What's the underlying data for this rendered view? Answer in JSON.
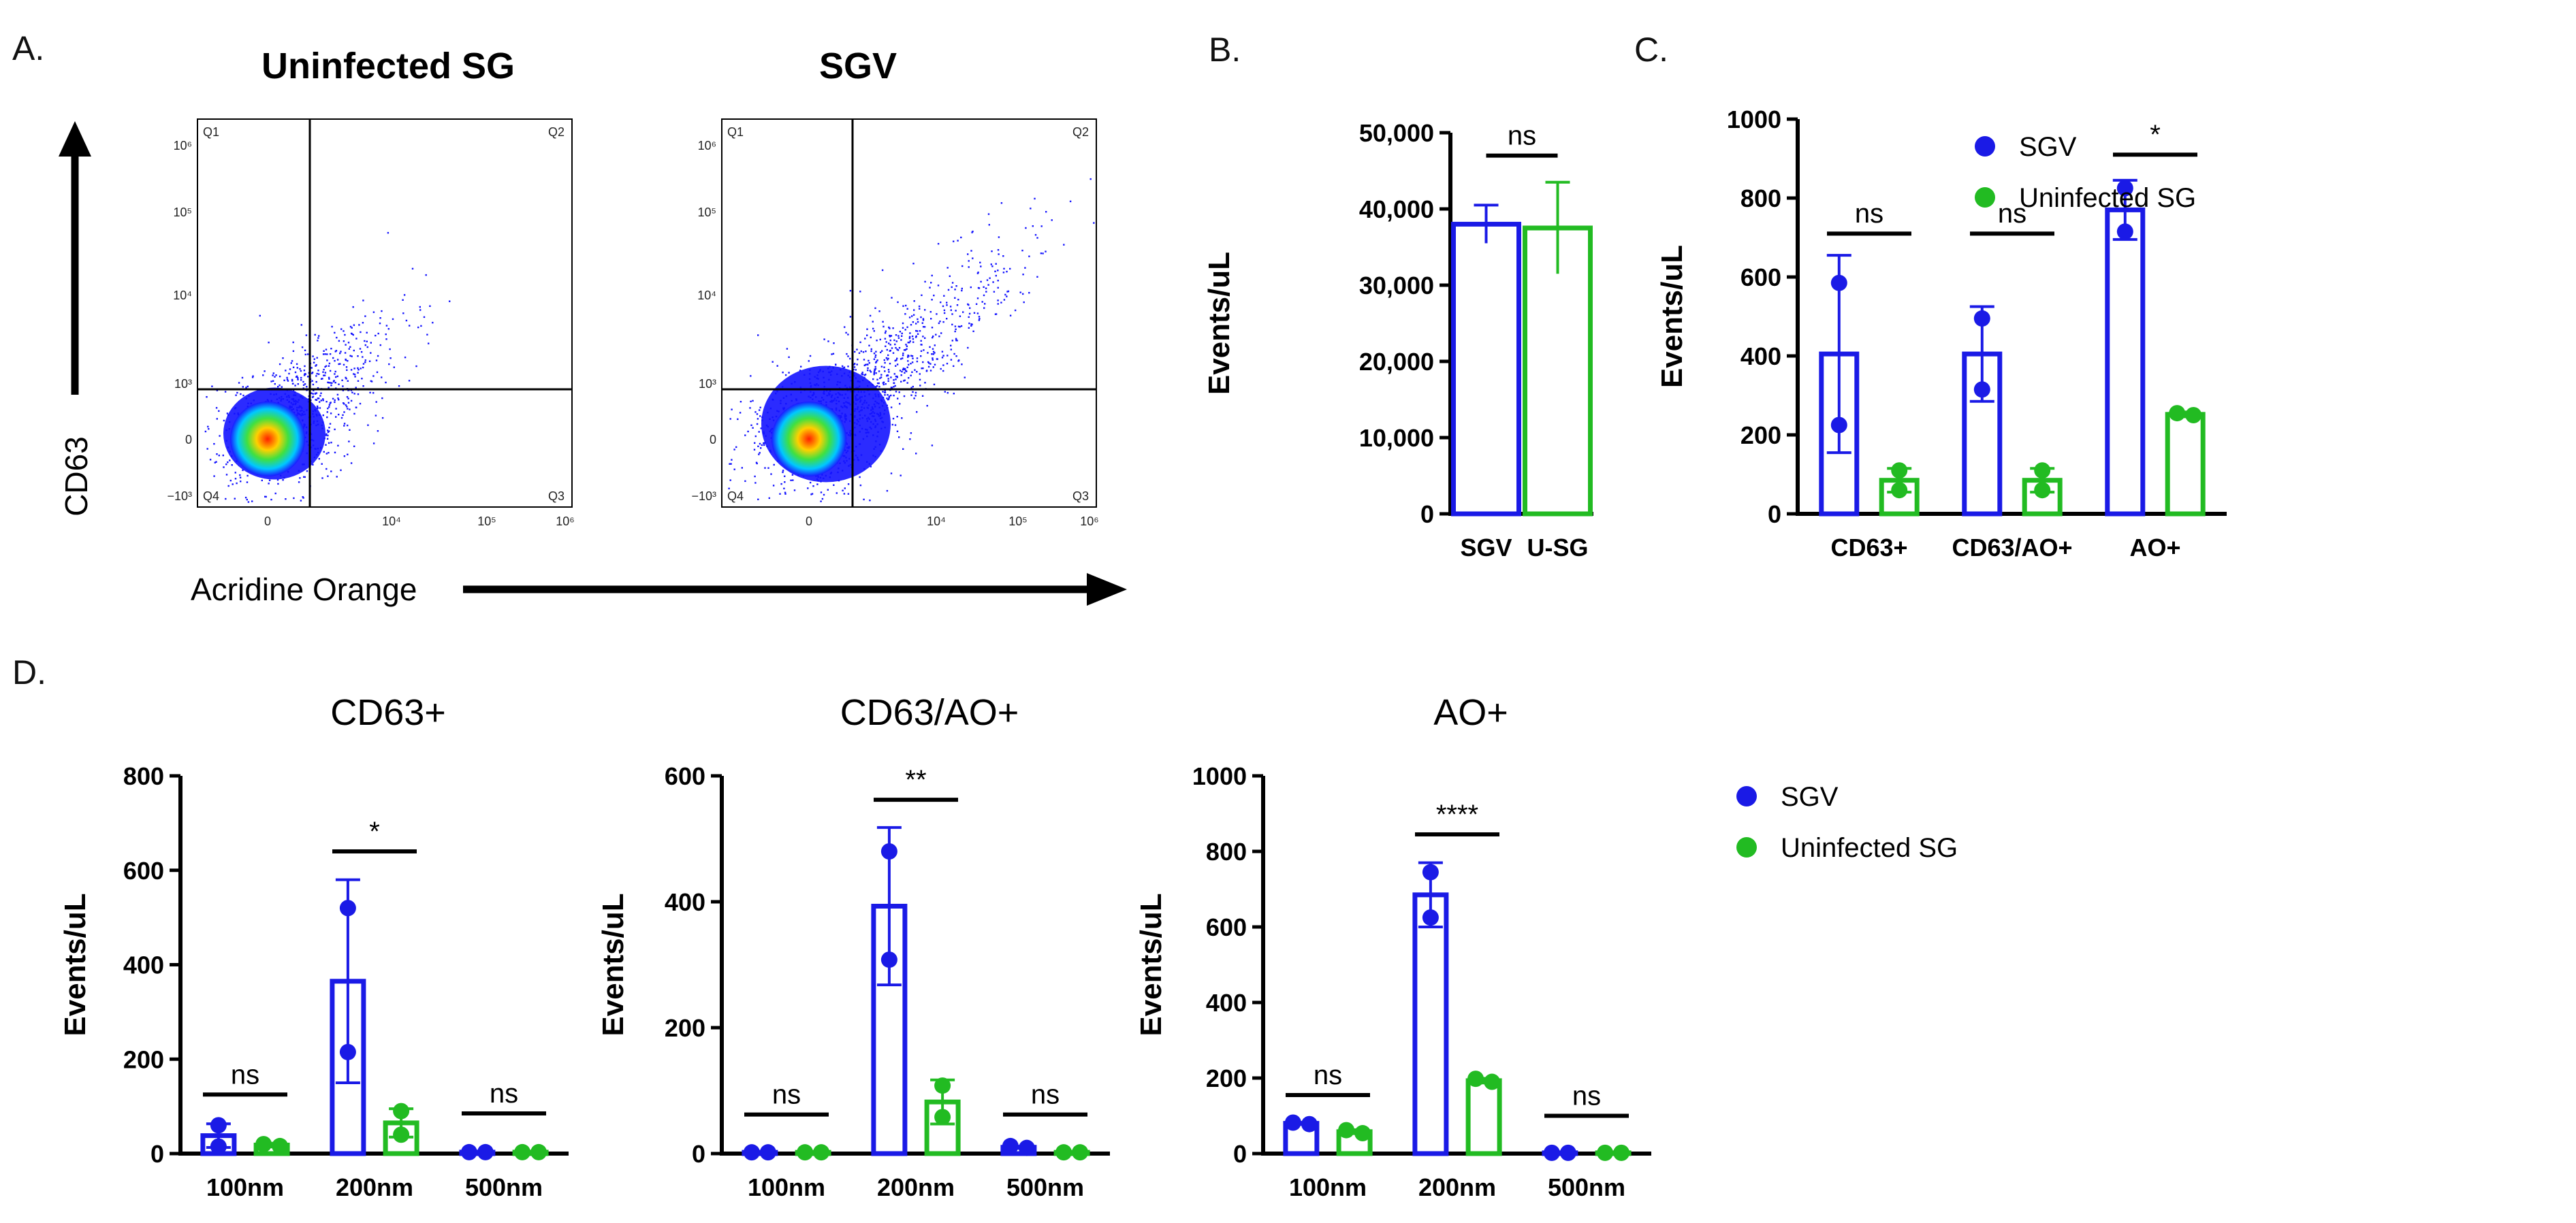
{
  "colors": {
    "sgv": "#1a1ae6",
    "usg": "#22bb22",
    "axis": "#000000",
    "dots": "#1414ff"
  },
  "panel_a": {
    "label": "A.",
    "y_axis_label": "CD63",
    "x_axis_label": "Acridine Orange",
    "plots": [
      {
        "title": "Uninfected SG",
        "spread": "low"
      },
      {
        "title": "SGV",
        "spread": "high"
      }
    ],
    "quadrants": [
      "Q1",
      "Q2",
      "Q3",
      "Q4"
    ],
    "y_ticks": [
      "10⁶",
      "10⁵",
      "10⁴",
      "10³",
      "0",
      "−10³"
    ],
    "x_ticks": [
      "0",
      "10⁴",
      "10⁵",
      "10⁶"
    ]
  },
  "chart_data": [
    {
      "id": "B",
      "label": "B.",
      "type": "bar",
      "title": "",
      "ylabel": "Events/uL",
      "ylim": [
        0,
        50000
      ],
      "yticks": [
        0,
        10000,
        20000,
        30000,
        40000,
        50000
      ],
      "ytick_labels": [
        "0",
        "10,000",
        "20,000",
        "30,000",
        "40,000",
        "50,000"
      ],
      "groups": [
        {
          "name": "SGV",
          "bars": [
            {
              "series": "SGV",
              "value": 38000,
              "err": 2500,
              "points": []
            }
          ]
        },
        {
          "name": "U-SG",
          "bars": [
            {
              "series": "Uninfected SG",
              "value": 37500,
              "err": 6000,
              "points": []
            }
          ]
        }
      ],
      "significance": [
        {
          "label": "ns",
          "from_group": 0,
          "to_group": 1,
          "y": 47000
        }
      ]
    },
    {
      "id": "C",
      "label": "C.",
      "type": "bar",
      "title": "",
      "ylabel": "Events/uL",
      "ylim": [
        0,
        1000
      ],
      "yticks": [
        0,
        200,
        400,
        600,
        800,
        1000
      ],
      "ytick_labels": [
        "0",
        "200",
        "400",
        "600",
        "800",
        "1000"
      ],
      "groups": [
        {
          "name": "CD63+",
          "bars": [
            {
              "series": "SGV",
              "value": 405,
              "err": 250,
              "points": [
                585,
                225
              ]
            },
            {
              "series": "Uninfected SG",
              "value": 85,
              "err": 30,
              "points": [
                110,
                60
              ]
            }
          ]
        },
        {
          "name": "CD63/AO+",
          "bars": [
            {
              "series": "SGV",
              "value": 405,
              "err": 120,
              "points": [
                495,
                315
              ]
            },
            {
              "series": "Uninfected SG",
              "value": 85,
              "err": 30,
              "points": [
                110,
                60
              ]
            }
          ]
        },
        {
          "name": "AO+",
          "bars": [
            {
              "series": "SGV",
              "value": 770,
              "err": 75,
              "points": [
                825,
                715
              ]
            },
            {
              "series": "Uninfected SG",
              "value": 252,
              "err": 6,
              "points": [
                255,
                250
              ]
            }
          ]
        }
      ],
      "significance": [
        {
          "label": "ns",
          "group": 0,
          "y": 710
        },
        {
          "label": "ns",
          "group": 1,
          "y": 710
        },
        {
          "label": "*",
          "group": 2,
          "y": 910
        }
      ]
    },
    {
      "id": "D1",
      "label": "D.",
      "type": "bar",
      "title": "CD63+",
      "ylabel": "Events/uL",
      "ylim": [
        0,
        800
      ],
      "yticks": [
        0,
        200,
        400,
        600,
        800
      ],
      "ytick_labels": [
        "0",
        "200",
        "400",
        "600",
        "800"
      ],
      "groups": [
        {
          "name": "100nm",
          "bars": [
            {
              "series": "SGV",
              "value": 38,
              "err": 25,
              "points": [
                60,
                15
              ]
            },
            {
              "series": "Uninfected SG",
              "value": 18,
              "err": 4,
              "points": [
                20,
                16
              ]
            }
          ]
        },
        {
          "name": "200nm",
          "bars": [
            {
              "series": "SGV",
              "value": 365,
              "err": 215,
              "points": [
                520,
                215
              ]
            },
            {
              "series": "Uninfected SG",
              "value": 65,
              "err": 30,
              "points": [
                90,
                40
              ]
            }
          ]
        },
        {
          "name": "500nm",
          "bars": [
            {
              "series": "SGV",
              "value": 3,
              "err": 0,
              "points": [
                3,
                3
              ]
            },
            {
              "series": "Uninfected SG",
              "value": 3,
              "err": 0,
              "points": [
                3,
                3
              ]
            }
          ]
        }
      ],
      "significance": [
        {
          "label": "ns",
          "group": 0,
          "y": 125
        },
        {
          "label": "*",
          "group": 1,
          "y": 640
        },
        {
          "label": "ns",
          "group": 2,
          "y": 85
        }
      ]
    },
    {
      "id": "D2",
      "label": "",
      "type": "bar",
      "title": "CD63/AO+",
      "ylabel": "Events/uL",
      "ylim": [
        0,
        600
      ],
      "yticks": [
        0,
        200,
        400,
        600
      ],
      "ytick_labels": [
        "0",
        "200",
        "400",
        "600"
      ],
      "groups": [
        {
          "name": "100nm",
          "bars": [
            {
              "series": "SGV",
              "value": 2,
              "err": 0,
              "points": [
                2,
                2
              ]
            },
            {
              "series": "Uninfected SG",
              "value": 2,
              "err": 0,
              "points": [
                2,
                2
              ]
            }
          ]
        },
        {
          "name": "200nm",
          "bars": [
            {
              "series": "SGV",
              "value": 393,
              "err": 125,
              "points": [
                480,
                308
              ]
            },
            {
              "series": "Uninfected SG",
              "value": 82,
              "err": 35,
              "points": [
                108,
                58
              ]
            }
          ]
        },
        {
          "name": "500nm",
          "bars": [
            {
              "series": "SGV",
              "value": 10,
              "err": 0,
              "points": [
                12,
                9
              ]
            },
            {
              "series": "Uninfected SG",
              "value": 2,
              "err": 0,
              "points": [
                2,
                2
              ]
            }
          ]
        }
      ],
      "significance": [
        {
          "label": "ns",
          "group": 0,
          "y": 62
        },
        {
          "label": "**",
          "group": 1,
          "y": 562
        },
        {
          "label": "ns",
          "group": 2,
          "y": 62
        }
      ]
    },
    {
      "id": "D3",
      "label": "",
      "type": "bar",
      "title": "AO+",
      "ylabel": "Events/uL",
      "ylim": [
        0,
        1000
      ],
      "yticks": [
        0,
        200,
        400,
        600,
        800,
        1000
      ],
      "ytick_labels": [
        "0",
        "200",
        "400",
        "600",
        "800",
        "1000"
      ],
      "groups": [
        {
          "name": "100nm",
          "bars": [
            {
              "series": "SGV",
              "value": 80,
              "err": 0,
              "points": [
                82,
                78
              ]
            },
            {
              "series": "Uninfected SG",
              "value": 58,
              "err": 5,
              "points": [
                62,
                54
              ]
            }
          ]
        },
        {
          "name": "200nm",
          "bars": [
            {
              "series": "SGV",
              "value": 685,
              "err": 85,
              "points": [
                745,
                625
              ]
            },
            {
              "series": "Uninfected SG",
              "value": 193,
              "err": 6,
              "points": [
                198,
                190
              ]
            }
          ]
        },
        {
          "name": "500nm",
          "bars": [
            {
              "series": "SGV",
              "value": 2,
              "err": 0,
              "points": [
                2,
                2
              ]
            },
            {
              "series": "Uninfected SG",
              "value": 2,
              "err": 0,
              "points": [
                2,
                2
              ]
            }
          ]
        }
      ],
      "significance": [
        {
          "label": "ns",
          "group": 0,
          "y": 155
        },
        {
          "label": "****",
          "group": 1,
          "y": 845
        },
        {
          "label": "ns",
          "group": 2,
          "y": 100
        }
      ]
    }
  ],
  "legends": [
    {
      "id": "legend-top",
      "items": [
        {
          "name": "SGV",
          "color": "#1a1ae6"
        },
        {
          "name": "Uninfected SG",
          "color": "#22bb22"
        }
      ]
    },
    {
      "id": "legend-bottom",
      "items": [
        {
          "name": "SGV",
          "color": "#1a1ae6"
        },
        {
          "name": "Uninfected SG",
          "color": "#22bb22"
        }
      ]
    }
  ]
}
